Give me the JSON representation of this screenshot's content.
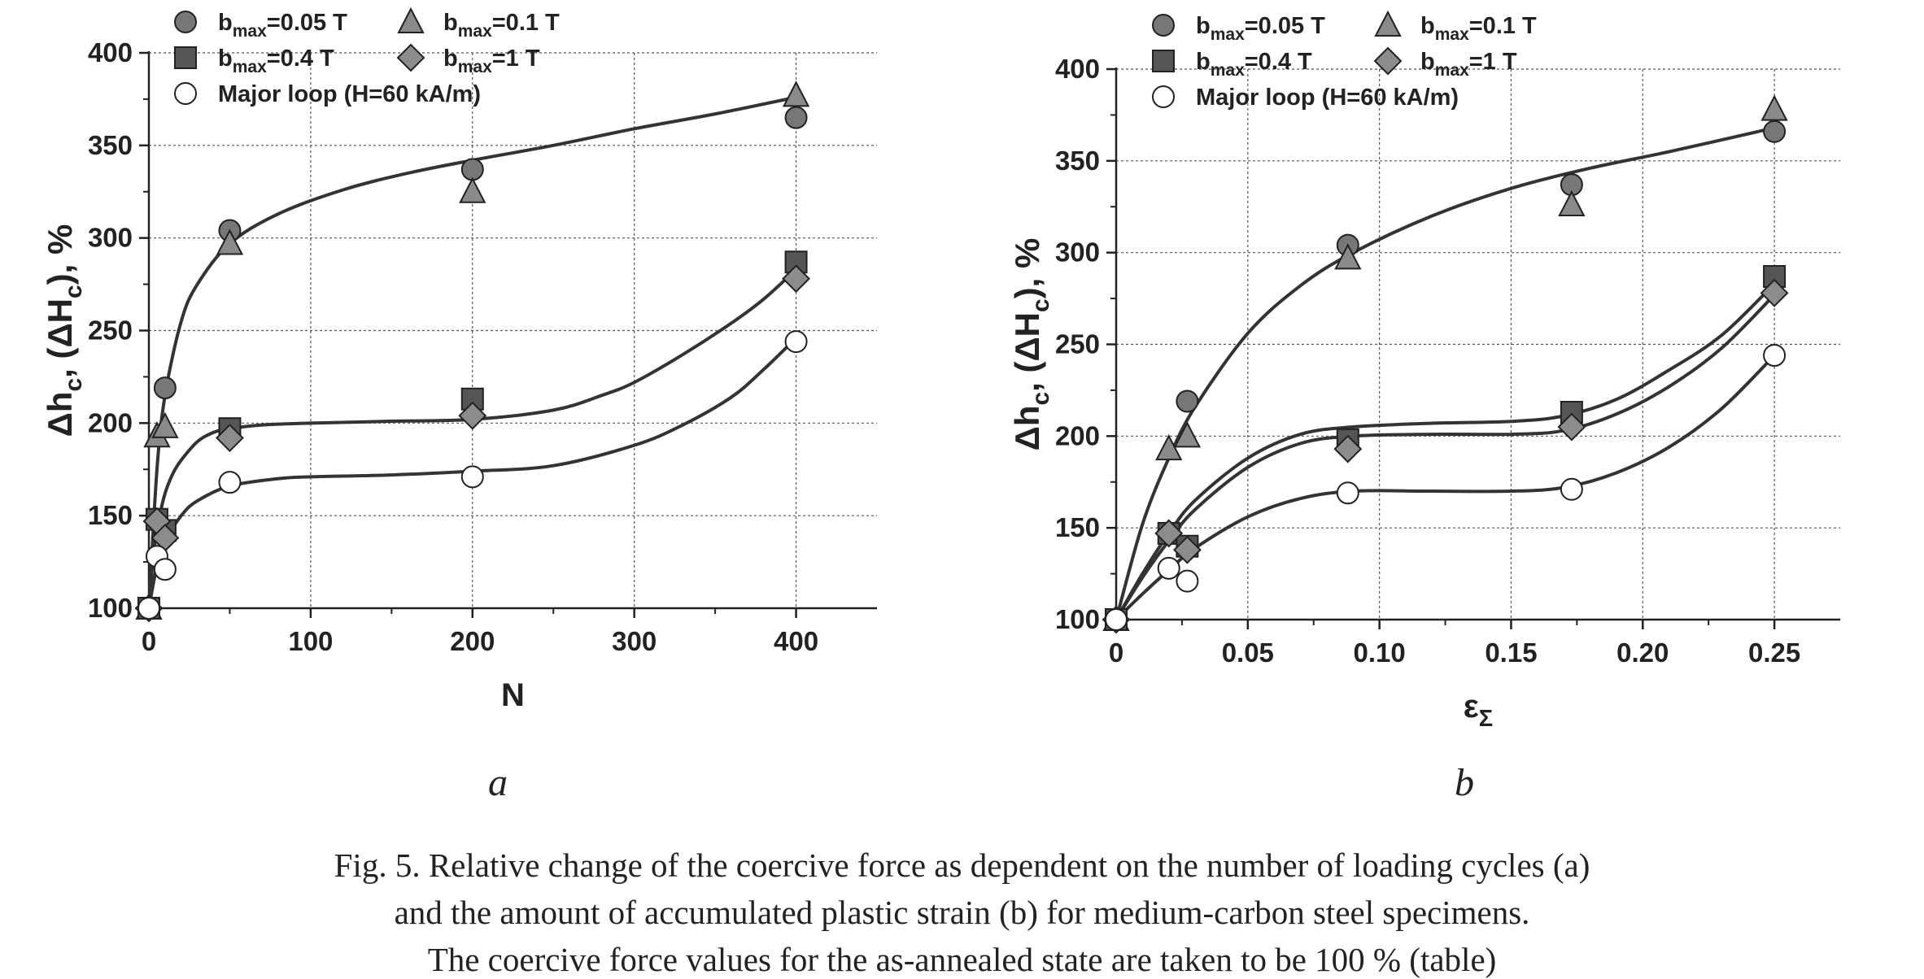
{
  "chart_data": [
    {
      "type": "scatter",
      "panel_label": "a",
      "xlabel": "N",
      "ylabel": "Δh_c, (ΔH_c), %",
      "xlim": [
        0,
        450
      ],
      "ylim": [
        100,
        400
      ],
      "xticks": [
        0,
        100,
        200,
        300,
        400
      ],
      "yticks": [
        100,
        150,
        200,
        250,
        300,
        350,
        400
      ],
      "grid": true,
      "legend_position": "top-left",
      "series": [
        {
          "name": "b_max=0.05 T",
          "marker": "circle",
          "fill": "#777777",
          "x": [
            0,
            10,
            50,
            200,
            400
          ],
          "y": [
            100,
            219,
            304,
            337,
            365
          ]
        },
        {
          "name": "b_max=0.1 T",
          "marker": "triangle",
          "fill": "#8a8a8a",
          "x": [
            0,
            5,
            10,
            50,
            200,
            400
          ],
          "y": [
            100,
            193,
            198,
            297,
            325,
            377
          ]
        },
        {
          "name": "b_max=0.4 T",
          "marker": "square",
          "fill": "#555555",
          "x": [
            0,
            5,
            10,
            50,
            200,
            400
          ],
          "y": [
            100,
            148,
            142,
            197,
            213,
            287
          ]
        },
        {
          "name": "b_max=1 T",
          "marker": "diamond",
          "fill": "#8c8c8c",
          "x": [
            0,
            5,
            10,
            50,
            200,
            400
          ],
          "y": [
            100,
            147,
            138,
            192,
            204,
            278
          ]
        },
        {
          "name": "Major loop (H=60 kA/m)",
          "marker": "open-circle",
          "fill": "#ffffff",
          "x": [
            0,
            5,
            10,
            50,
            200,
            400
          ],
          "y": [
            100,
            128,
            121,
            168,
            171,
            244
          ]
        }
      ],
      "fit_curves": [
        {
          "x": [
            0,
            5,
            10,
            20,
            30,
            50,
            80,
            120,
            160,
            200,
            250,
            300,
            350,
            400
          ],
          "y": [
            100,
            175,
            215,
            255,
            275,
            297,
            313,
            326,
            335,
            342,
            350,
            359,
            367,
            376
          ]
        },
        {
          "x": [
            0,
            3,
            6,
            10,
            15,
            20,
            30,
            40,
            50,
            70,
            100,
            150,
            200,
            250,
            280,
            300,
            330,
            360,
            380,
            400
          ],
          "y": [
            100,
            130,
            147,
            162,
            173,
            180,
            190,
            195,
            197,
            199,
            200,
            201,
            202,
            207,
            215,
            222,
            237,
            254,
            267,
            283
          ]
        },
        {
          "x": [
            0,
            5,
            10,
            20,
            30,
            50,
            80,
            100,
            150,
            200,
            250,
            300,
            330,
            360,
            380,
            400
          ],
          "y": [
            100,
            123,
            136,
            150,
            158,
            166,
            170,
            171,
            172,
            174,
            177,
            188,
            199,
            214,
            229,
            246
          ]
        }
      ]
    },
    {
      "type": "scatter",
      "panel_label": "b",
      "xlabel": "ε_Σ",
      "ylabel": "Δh_c, (ΔH_c), %",
      "xlim": [
        0,
        0.275
      ],
      "ylim": [
        100,
        400
      ],
      "xticks": [
        0,
        0.05,
        0.1,
        0.15,
        0.2,
        0.25
      ],
      "xtick_labels": [
        "0",
        "0.05",
        "0.10",
        "0.15",
        "0.20",
        "0.25"
      ],
      "yticks": [
        100,
        150,
        200,
        250,
        300,
        350,
        400
      ],
      "grid": true,
      "legend_position": "top-left",
      "series": [
        {
          "name": "b_max=0.05 T",
          "marker": "circle",
          "fill": "#777777",
          "x": [
            0,
            0.027,
            0.088,
            0.173,
            0.25
          ],
          "y": [
            100,
            219,
            304,
            337,
            366
          ]
        },
        {
          "name": "b_max=0.1 T",
          "marker": "triangle",
          "fill": "#8a8a8a",
          "x": [
            0,
            0.02,
            0.027,
            0.088,
            0.173,
            0.25
          ],
          "y": [
            100,
            193,
            200,
            297,
            326,
            378
          ]
        },
        {
          "name": "b_max=0.4 T",
          "marker": "square",
          "fill": "#555555",
          "x": [
            0,
            0.02,
            0.027,
            0.088,
            0.173,
            0.25
          ],
          "y": [
            100,
            147,
            140,
            198,
            213,
            287
          ]
        },
        {
          "name": "b_max=1 T",
          "marker": "diamond",
          "fill": "#8c8c8c",
          "x": [
            0,
            0.02,
            0.027,
            0.088,
            0.173,
            0.25
          ],
          "y": [
            100,
            147,
            138,
            193,
            205,
            278
          ]
        },
        {
          "name": "Major loop (H=60 kA/m)",
          "marker": "open-circle",
          "fill": "#ffffff",
          "x": [
            0,
            0.02,
            0.027,
            0.088,
            0.173,
            0.25
          ],
          "y": [
            100,
            128,
            121,
            169,
            171,
            244
          ]
        }
      ],
      "fit_curves": [
        {
          "x": [
            0,
            0.01,
            0.02,
            0.03,
            0.05,
            0.07,
            0.09,
            0.12,
            0.15,
            0.18,
            0.21,
            0.25
          ],
          "y": [
            100,
            152,
            188,
            216,
            256,
            282,
            300,
            320,
            335,
            346,
            355,
            368
          ]
        },
        {
          "x": [
            0,
            0.01,
            0.02,
            0.03,
            0.05,
            0.07,
            0.09,
            0.12,
            0.15,
            0.17,
            0.19,
            0.21,
            0.23,
            0.25
          ],
          "y": [
            100,
            125,
            147,
            165,
            188,
            201,
            205,
            207,
            208,
            211,
            220,
            236,
            255,
            283
          ]
        },
        {
          "x": [
            0,
            0.01,
            0.02,
            0.03,
            0.05,
            0.07,
            0.09,
            0.12,
            0.15,
            0.17,
            0.19,
            0.21,
            0.23,
            0.25
          ],
          "y": [
            100,
            123,
            143,
            160,
            183,
            196,
            200,
            201,
            201,
            203,
            212,
            227,
            248,
            277
          ]
        },
        {
          "x": [
            0,
            0.01,
            0.02,
            0.03,
            0.05,
            0.07,
            0.09,
            0.12,
            0.15,
            0.17,
            0.19,
            0.21,
            0.23,
            0.25
          ],
          "y": [
            100,
            114,
            127,
            139,
            156,
            166,
            170,
            170,
            170,
            172,
            180,
            194,
            215,
            244
          ]
        }
      ]
    }
  ],
  "figure_caption": [
    "Fig. 5. Relative change of the coercive force as dependent on the number of loading cycles (a)",
    "and the amount of accumulated plastic strain (b) for medium-carbon steel specimens.",
    "The coercive force values for the as-annealed state are taken to be 100 % (table)"
  ]
}
